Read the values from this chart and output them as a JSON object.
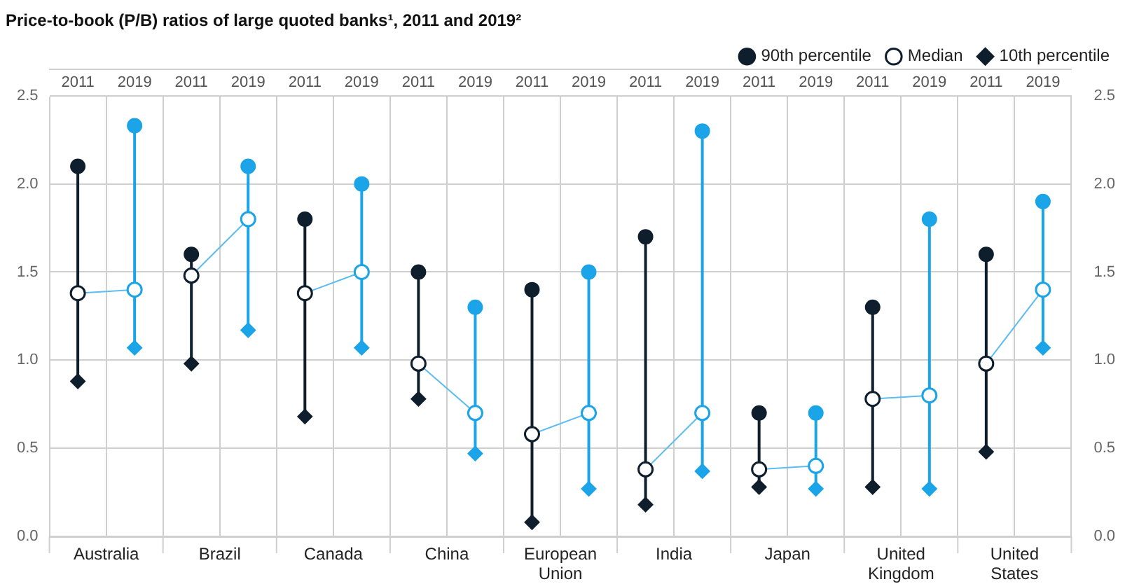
{
  "chart_data": {
    "type": "scatter",
    "title": "Price-to-book (P/B) ratios of large quoted banks¹, 2011 and 2019²",
    "categories": [
      "2011",
      "2019",
      "2011",
      "2019",
      "2011",
      "2019",
      "2011",
      "2019",
      "2011",
      "2019",
      "2011",
      "2019",
      "2011",
      "2019",
      "2011",
      "2019",
      "2011",
      "2019"
    ],
    "annotations": [
      "Australia",
      "Brazil",
      "Canada",
      "China",
      "European Union",
      "India",
      "Japan",
      "United Kingdom",
      "United States"
    ],
    "series": [
      {
        "name": "90th percentile",
        "marker": "circle",
        "color": "#0f1e2d",
        "colors": [
          "#0f1e2d",
          "#1ba4e8",
          "#0f1e2d",
          "#1ba4e8",
          "#0f1e2d",
          "#1ba4e8",
          "#0f1e2d",
          "#1ba4e8",
          "#0f1e2d",
          "#1ba4e8",
          "#0f1e2d",
          "#1ba4e8",
          "#0f1e2d",
          "#1ba4e8",
          "#0f1e2d",
          "#1ba4e8",
          "#0f1e2d",
          "#1ba4e8"
        ],
        "values": [
          2.1,
          2.33,
          1.6,
          2.1,
          1.8,
          2.0,
          1.5,
          1.3,
          1.4,
          1.5,
          1.7,
          2.3,
          0.7,
          0.7,
          1.3,
          1.8,
          1.6,
          1.9
        ]
      },
      {
        "name": "Median",
        "type": "line",
        "marker": "circle",
        "color": "#5bbcf0",
        "colors": [
          "#0f1e2d",
          "#1ba4e8",
          "#0f1e2d",
          "#1ba4e8",
          "#0f1e2d",
          "#1ba4e8",
          "#0f1e2d",
          "#1ba4e8",
          "#0f1e2d",
          "#1ba4e8",
          "#0f1e2d",
          "#1ba4e8",
          "#0f1e2d",
          "#1ba4e8",
          "#0f1e2d",
          "#1ba4e8",
          "#0f1e2d",
          "#1ba4e8"
        ],
        "values": [
          1.38,
          1.4,
          1.48,
          1.8,
          1.38,
          1.5,
          0.98,
          0.7,
          0.58,
          0.7,
          0.38,
          0.7,
          0.38,
          0.4,
          0.78,
          0.8,
          0.98,
          1.4
        ]
      },
      {
        "name": "10th percentile",
        "marker": "diamond",
        "color": "#0f1e2d",
        "colors": [
          "#0f1e2d",
          "#1ba4e8",
          "#0f1e2d",
          "#1ba4e8",
          "#0f1e2d",
          "#1ba4e8",
          "#0f1e2d",
          "#1ba4e8",
          "#0f1e2d",
          "#1ba4e8",
          "#0f1e2d",
          "#1ba4e8",
          "#0f1e2d",
          "#1ba4e8",
          "#0f1e2d",
          "#1ba4e8",
          "#0f1e2d",
          "#1ba4e8"
        ],
        "values": [
          0.88,
          1.07,
          0.98,
          1.17,
          0.68,
          1.07,
          0.78,
          0.47,
          0.08,
          0.27,
          0.18,
          0.37,
          0.28,
          0.27,
          0.28,
          0.27,
          0.48,
          1.07
        ]
      }
    ],
    "ylim": [
      0,
      2.5
    ],
    "yticks": [
      {
        "value": 0,
        "label": "0.0"
      },
      {
        "value": 0.5,
        "label": "0.5"
      },
      {
        "value": 1,
        "label": "1.0"
      },
      {
        "value": 1.5,
        "label": "1.5"
      },
      {
        "value": 2,
        "label": "2.0"
      },
      {
        "value": 2.5,
        "label": "2.5"
      }
    ],
    "y2lim": [
      0,
      2.5
    ],
    "y2ticks": [
      {
        "value": 0,
        "label": "0.0"
      },
      {
        "value": 0.5,
        "label": "0.5"
      },
      {
        "value": 1,
        "label": "1.0"
      },
      {
        "value": 1.5,
        "label": "1.5"
      },
      {
        "value": 2,
        "label": "2.0"
      },
      {
        "value": 2.5,
        "label": "2.5"
      }
    ],
    "grid": true,
    "legend": "top right"
  }
}
